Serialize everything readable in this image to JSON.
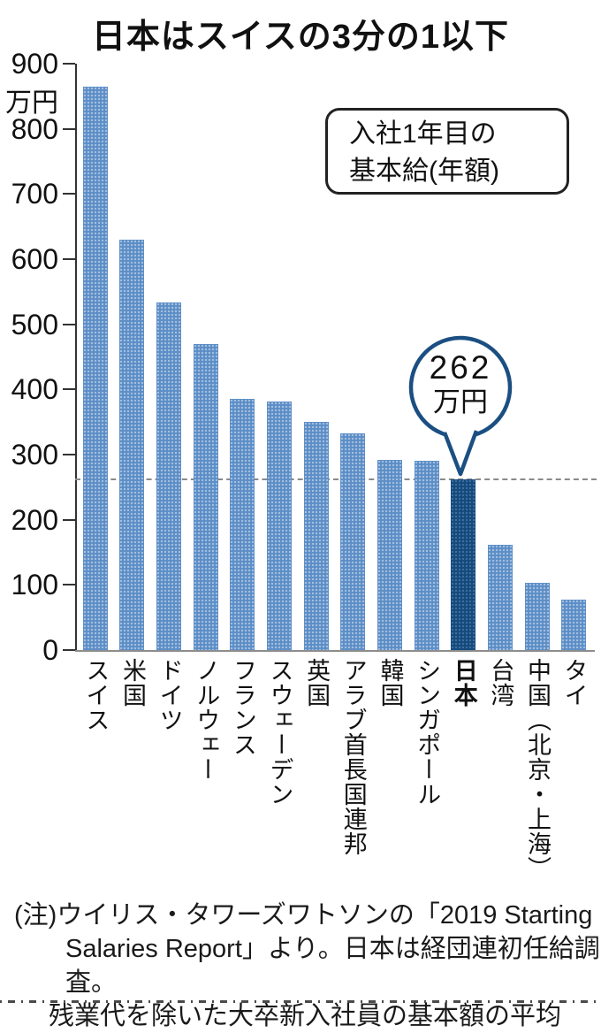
{
  "title": "日本はスイスの3分の1以下",
  "annotation_box": {
    "line1": "入社1年目の",
    "line2": "基本給(年額)"
  },
  "callout": {
    "value": "262",
    "unit": "万円"
  },
  "note": {
    "lines": [
      "(注)ウイリス・タワーズワトソンの「2019 Starting",
      "Salaries Report」より。日本は経団連初任給調査。",
      "残業代を除いた大卒新入社員の基本額の平均"
    ]
  },
  "chart_data": {
    "type": "bar",
    "title": "日本はスイスの3分の1以下",
    "subtitle": "入社1年目の基本給(年額)",
    "unit_label": "万円",
    "categories": [
      "スイス",
      "米国",
      "ドイツ",
      "ノルウェー",
      "フランス",
      "スウェーデン",
      "英国",
      "アラブ首長国連邦",
      "韓国",
      "シンガポール",
      "日本",
      "台湾",
      "中国（北京・上海）",
      "タイ"
    ],
    "values": [
      865,
      630,
      533,
      470,
      386,
      382,
      350,
      332,
      292,
      290,
      262,
      161,
      103,
      78
    ],
    "ylim": [
      0,
      900
    ],
    "ytick_interval": 100,
    "ytick_labels": [
      "0",
      "100",
      "200",
      "300",
      "400",
      "500",
      "600",
      "700",
      "800",
      "900"
    ],
    "grid": false,
    "legend": "none",
    "highlight_index": 10,
    "highlight_category": "日本",
    "reference_line_value": 262,
    "callout_label": "262万円",
    "colors": {
      "bar": "#5b8dc6",
      "highlight_bar": "#15497b",
      "callout_border": "#1b4f82",
      "reference_line": "#8a8a8a",
      "axis": "#333333"
    }
  }
}
